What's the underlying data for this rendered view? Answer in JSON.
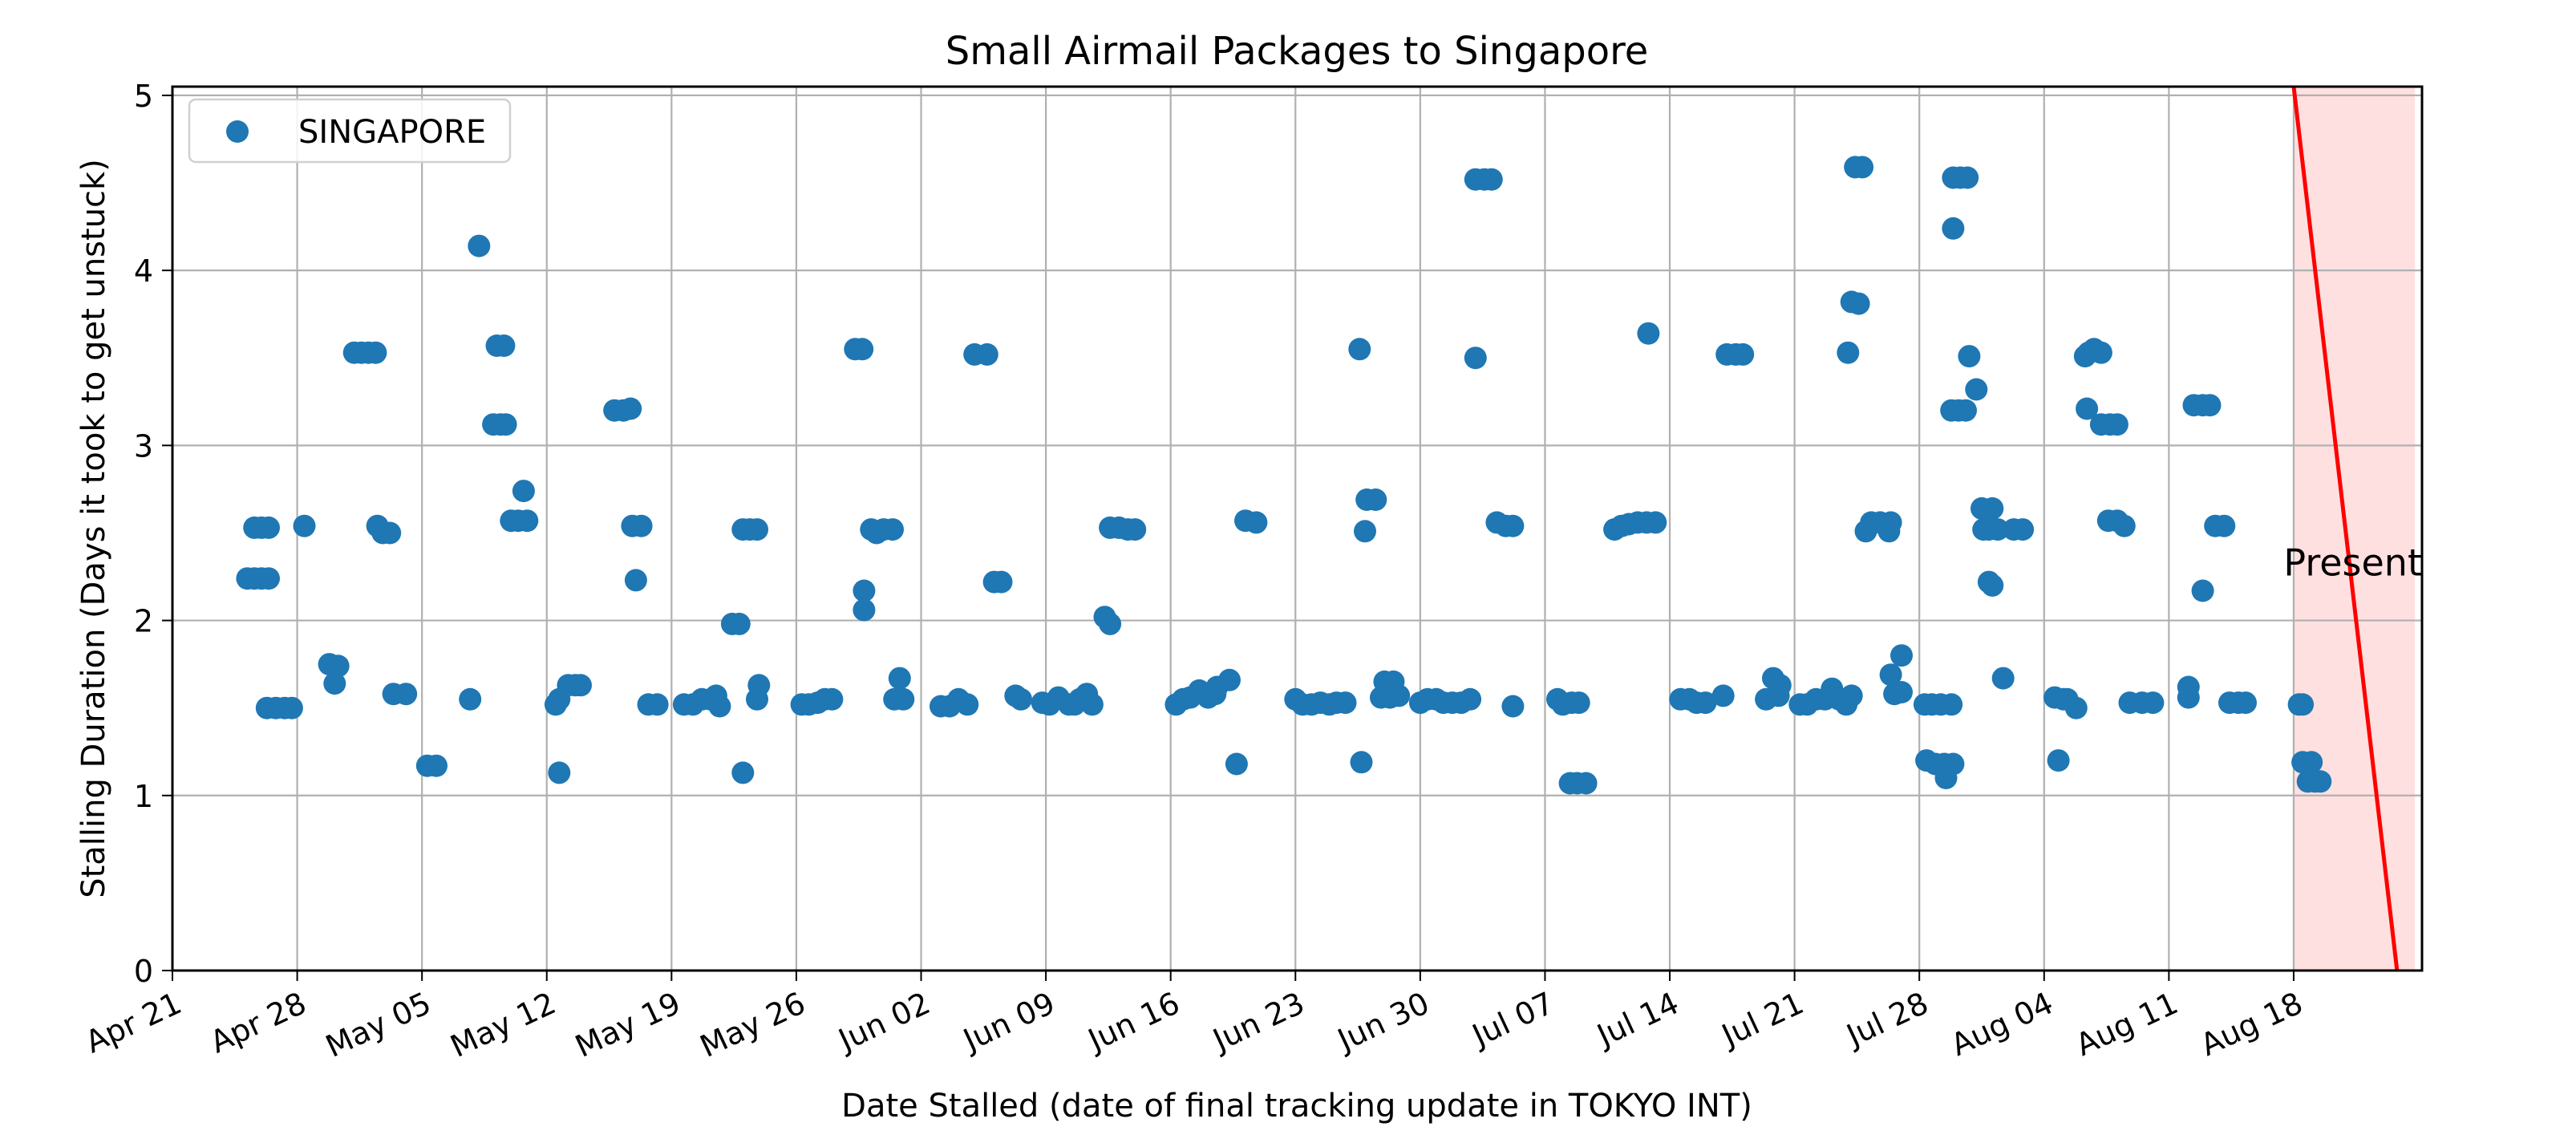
{
  "chart_data": {
    "type": "scatter",
    "title": "Small Airmail Packages to Singapore",
    "xlabel": "Date Stalled (date of final tracking update in TOKYO INT)",
    "ylabel": "Stalling Duration (Days it took to get unstuck)",
    "xlim": [
      0,
      126.2
    ],
    "ylim": [
      0,
      5.05
    ],
    "x_unit": "days since Apr 21",
    "grid": true,
    "legend": {
      "location": "top-left",
      "entries": [
        "SINGAPORE"
      ]
    },
    "x_ticks": [
      {
        "value": 0,
        "label": "Apr 21"
      },
      {
        "value": 7,
        "label": "Apr 28"
      },
      {
        "value": 14,
        "label": "May 05"
      },
      {
        "value": 21,
        "label": "May 12"
      },
      {
        "value": 28,
        "label": "May 19"
      },
      {
        "value": 35,
        "label": "May 26"
      },
      {
        "value": 42,
        "label": "Jun 02"
      },
      {
        "value": 49,
        "label": "Jun 09"
      },
      {
        "value": 56,
        "label": "Jun 16"
      },
      {
        "value": 63,
        "label": "Jun 23"
      },
      {
        "value": 70,
        "label": "Jun 30"
      },
      {
        "value": 77,
        "label": "Jul 07"
      },
      {
        "value": 84,
        "label": "Jul 14"
      },
      {
        "value": 91,
        "label": "Jul 21"
      },
      {
        "value": 98,
        "label": "Jul 28"
      },
      {
        "value": 105,
        "label": "Aug 04"
      },
      {
        "value": 112,
        "label": "Aug 11"
      },
      {
        "value": 119,
        "label": "Aug 18"
      }
    ],
    "y_ticks": [
      {
        "value": 0,
        "label": "0"
      },
      {
        "value": 1,
        "label": "1"
      },
      {
        "value": 2,
        "label": "2"
      },
      {
        "value": 3,
        "label": "3"
      },
      {
        "value": 4,
        "label": "4"
      },
      {
        "value": 5,
        "label": "5"
      }
    ],
    "annotation": {
      "text": "Present",
      "color": "#ff0000",
      "shade_color": "#ffe0e0",
      "line_from": [
        119,
        5.05
      ],
      "line_to": [
        124.8,
        0
      ],
      "shade_range": [
        119,
        125.8
      ],
      "label_at": [
        126.2,
        2.33
      ]
    },
    "series": [
      {
        "name": "SINGAPORE",
        "color": "#1f77b4",
        "points": [
          [
            4.2,
            2.24
          ],
          [
            4.6,
            2.24
          ],
          [
            5.0,
            2.24
          ],
          [
            5.4,
            2.24
          ],
          [
            4.6,
            2.53
          ],
          [
            5.0,
            2.53
          ],
          [
            5.4,
            2.53
          ],
          [
            5.3,
            1.5
          ],
          [
            5.8,
            1.5
          ],
          [
            6.3,
            1.5
          ],
          [
            6.7,
            1.5
          ],
          [
            7.4,
            2.54
          ],
          [
            8.8,
            1.75
          ],
          [
            9.3,
            1.74
          ],
          [
            9.1,
            1.64
          ],
          [
            10.2,
            3.53
          ],
          [
            10.6,
            3.53
          ],
          [
            11.0,
            3.53
          ],
          [
            11.4,
            3.53
          ],
          [
            11.5,
            2.54
          ],
          [
            11.8,
            2.5
          ],
          [
            12.2,
            2.5
          ],
          [
            12.4,
            1.58
          ],
          [
            13.1,
            1.58
          ],
          [
            14.3,
            1.17
          ],
          [
            14.8,
            1.17
          ],
          [
            16.7,
            1.55
          ],
          [
            17.2,
            4.14
          ],
          [
            18.0,
            3.12
          ],
          [
            18.4,
            3.12
          ],
          [
            18.7,
            3.12
          ],
          [
            18.2,
            3.57
          ],
          [
            18.6,
            3.57
          ],
          [
            19.0,
            2.57
          ],
          [
            19.4,
            2.57
          ],
          [
            19.9,
            2.57
          ],
          [
            19.7,
            2.74
          ],
          [
            21.5,
            1.52
          ],
          [
            21.7,
            1.55
          ],
          [
            21.7,
            1.13
          ],
          [
            22.2,
            1.63
          ],
          [
            22.6,
            1.63
          ],
          [
            22.9,
            1.63
          ],
          [
            24.8,
            3.2
          ],
          [
            25.3,
            3.2
          ],
          [
            25.7,
            3.21
          ],
          [
            25.8,
            2.54
          ],
          [
            26.3,
            2.54
          ],
          [
            26.0,
            2.23
          ],
          [
            26.7,
            1.52
          ],
          [
            27.2,
            1.52
          ],
          [
            28.7,
            1.52
          ],
          [
            29.2,
            1.52
          ],
          [
            29.7,
            1.55
          ],
          [
            30.2,
            1.55
          ],
          [
            30.5,
            1.57
          ],
          [
            30.7,
            1.51
          ],
          [
            31.4,
            1.98
          ],
          [
            31.8,
            1.98
          ],
          [
            32.0,
            2.52
          ],
          [
            32.4,
            2.52
          ],
          [
            32.8,
            2.52
          ],
          [
            32.0,
            1.13
          ],
          [
            32.9,
            1.63
          ],
          [
            32.8,
            1.55
          ],
          [
            35.3,
            1.52
          ],
          [
            35.7,
            1.52
          ],
          [
            36.2,
            1.53
          ],
          [
            36.6,
            1.55
          ],
          [
            37.0,
            1.55
          ],
          [
            38.3,
            3.55
          ],
          [
            38.7,
            3.55
          ],
          [
            38.8,
            2.17
          ],
          [
            38.8,
            2.06
          ],
          [
            39.2,
            2.52
          ],
          [
            39.5,
            2.5
          ],
          [
            39.9,
            2.52
          ],
          [
            40.4,
            2.52
          ],
          [
            40.5,
            1.55
          ],
          [
            40.8,
            1.67
          ],
          [
            41.0,
            1.55
          ],
          [
            43.1,
            1.51
          ],
          [
            43.6,
            1.51
          ],
          [
            44.1,
            1.55
          ],
          [
            44.6,
            1.52
          ],
          [
            45.0,
            3.52
          ],
          [
            45.7,
            3.52
          ],
          [
            46.1,
            2.22
          ],
          [
            46.5,
            2.22
          ],
          [
            47.3,
            1.57
          ],
          [
            47.6,
            1.55
          ],
          [
            48.8,
            1.53
          ],
          [
            49.2,
            1.52
          ],
          [
            49.7,
            1.56
          ],
          [
            50.3,
            1.52
          ],
          [
            50.6,
            1.52
          ],
          [
            50.9,
            1.55
          ],
          [
            51.3,
            1.58
          ],
          [
            51.6,
            1.52
          ],
          [
            52.3,
            2.02
          ],
          [
            52.6,
            1.98
          ],
          [
            52.6,
            2.53
          ],
          [
            53.1,
            2.53
          ],
          [
            53.6,
            2.52
          ],
          [
            54.0,
            2.52
          ],
          [
            56.3,
            1.52
          ],
          [
            56.7,
            1.55
          ],
          [
            57.1,
            1.56
          ],
          [
            57.6,
            1.6
          ],
          [
            58.1,
            1.56
          ],
          [
            58.5,
            1.58
          ],
          [
            58.6,
            1.62
          ],
          [
            59.3,
            1.66
          ],
          [
            59.7,
            1.18
          ],
          [
            60.2,
            2.57
          ],
          [
            60.8,
            2.56
          ],
          [
            63.0,
            1.55
          ],
          [
            63.4,
            1.52
          ],
          [
            63.9,
            1.52
          ],
          [
            64.4,
            1.53
          ],
          [
            64.9,
            1.52
          ],
          [
            65.3,
            1.53
          ],
          [
            65.8,
            1.53
          ],
          [
            66.6,
            3.55
          ],
          [
            66.7,
            1.19
          ],
          [
            66.9,
            2.51
          ],
          [
            67.0,
            2.69
          ],
          [
            67.5,
            2.69
          ],
          [
            67.8,
            1.56
          ],
          [
            68.0,
            1.65
          ],
          [
            68.3,
            1.56
          ],
          [
            68.5,
            1.65
          ],
          [
            68.8,
            1.57
          ],
          [
            70.0,
            1.53
          ],
          [
            70.4,
            1.55
          ],
          [
            70.9,
            1.55
          ],
          [
            71.3,
            1.53
          ],
          [
            71.8,
            1.53
          ],
          [
            72.3,
            1.53
          ],
          [
            72.8,
            1.55
          ],
          [
            73.1,
            3.5
          ],
          [
            73.1,
            4.52
          ],
          [
            73.6,
            4.52
          ],
          [
            74.0,
            4.52
          ],
          [
            74.3,
            2.56
          ],
          [
            74.8,
            2.54
          ],
          [
            75.2,
            2.54
          ],
          [
            75.2,
            1.51
          ],
          [
            77.7,
            1.55
          ],
          [
            78.0,
            1.52
          ],
          [
            78.5,
            1.53
          ],
          [
            78.9,
            1.53
          ],
          [
            78.4,
            1.07
          ],
          [
            78.8,
            1.07
          ],
          [
            79.3,
            1.07
          ],
          [
            80.9,
            2.52
          ],
          [
            81.3,
            2.54
          ],
          [
            81.7,
            2.55
          ],
          [
            82.2,
            2.56
          ],
          [
            82.7,
            2.56
          ],
          [
            82.8,
            3.64
          ],
          [
            83.2,
            2.56
          ],
          [
            84.6,
            1.55
          ],
          [
            85.1,
            1.55
          ],
          [
            85.5,
            1.53
          ],
          [
            86.0,
            1.53
          ],
          [
            87.0,
            1.57
          ],
          [
            87.2,
            3.52
          ],
          [
            87.7,
            3.52
          ],
          [
            88.1,
            3.52
          ],
          [
            89.4,
            1.55
          ],
          [
            89.8,
            1.67
          ],
          [
            90.1,
            1.57
          ],
          [
            90.2,
            1.63
          ],
          [
            91.3,
            1.52
          ],
          [
            91.7,
            1.52
          ],
          [
            92.2,
            1.55
          ],
          [
            92.7,
            1.55
          ],
          [
            93.1,
            1.61
          ],
          [
            93.5,
            1.55
          ],
          [
            93.9,
            1.52
          ],
          [
            94.2,
            1.57
          ],
          [
            94.0,
            3.53
          ],
          [
            94.2,
            3.82
          ],
          [
            94.6,
            3.81
          ],
          [
            94.4,
            4.59
          ],
          [
            94.8,
            4.59
          ],
          [
            95.0,
            2.51
          ],
          [
            95.3,
            2.56
          ],
          [
            95.8,
            2.56
          ],
          [
            96.3,
            2.51
          ],
          [
            96.4,
            2.56
          ],
          [
            96.4,
            1.69
          ],
          [
            96.6,
            1.58
          ],
          [
            97.0,
            1.59
          ],
          [
            97.0,
            1.8
          ],
          [
            98.3,
            1.52
          ],
          [
            98.7,
            1.52
          ],
          [
            99.2,
            1.52
          ],
          [
            99.5,
            1.1
          ],
          [
            99.8,
            1.52
          ],
          [
            98.4,
            1.2
          ],
          [
            98.9,
            1.18
          ],
          [
            99.4,
            1.18
          ],
          [
            99.9,
            1.18
          ],
          [
            99.8,
            3.2
          ],
          [
            100.2,
            3.2
          ],
          [
            100.6,
            3.2
          ],
          [
            99.9,
            4.24
          ],
          [
            99.9,
            4.53
          ],
          [
            100.3,
            4.53
          ],
          [
            100.7,
            4.53
          ],
          [
            100.8,
            3.51
          ],
          [
            101.2,
            3.32
          ],
          [
            101.5,
            2.64
          ],
          [
            101.6,
            2.52
          ],
          [
            101.9,
            2.52
          ],
          [
            102.1,
            2.64
          ],
          [
            102.4,
            2.52
          ],
          [
            101.9,
            2.22
          ],
          [
            102.1,
            2.2
          ],
          [
            102.7,
            1.67
          ],
          [
            103.3,
            2.52
          ],
          [
            103.8,
            2.52
          ],
          [
            105.6,
            1.56
          ],
          [
            105.8,
            1.2
          ],
          [
            106.1,
            1.55
          ],
          [
            106.3,
            1.55
          ],
          [
            106.8,
            1.5
          ],
          [
            107.3,
            3.51
          ],
          [
            107.5,
            3.53
          ],
          [
            107.8,
            3.55
          ],
          [
            108.2,
            3.53
          ],
          [
            107.4,
            3.21
          ],
          [
            108.2,
            3.12
          ],
          [
            108.7,
            3.12
          ],
          [
            109.1,
            3.12
          ],
          [
            108.6,
            2.57
          ],
          [
            109.1,
            2.57
          ],
          [
            109.5,
            2.54
          ],
          [
            109.8,
            1.53
          ],
          [
            110.5,
            1.53
          ],
          [
            111.1,
            1.53
          ],
          [
            113.1,
            1.62
          ],
          [
            113.1,
            1.56
          ],
          [
            113.4,
            3.23
          ],
          [
            113.9,
            3.23
          ],
          [
            114.3,
            3.23
          ],
          [
            113.9,
            2.17
          ],
          [
            114.6,
            2.54
          ],
          [
            115.1,
            2.54
          ],
          [
            115.4,
            1.53
          ],
          [
            115.9,
            1.53
          ],
          [
            116.3,
            1.53
          ],
          [
            119.3,
            1.52
          ],
          [
            119.5,
            1.52
          ],
          [
            119.5,
            1.19
          ],
          [
            120.0,
            1.19
          ],
          [
            119.8,
            1.08
          ],
          [
            120.2,
            1.08
          ],
          [
            120.5,
            1.08
          ]
        ]
      }
    ]
  }
}
